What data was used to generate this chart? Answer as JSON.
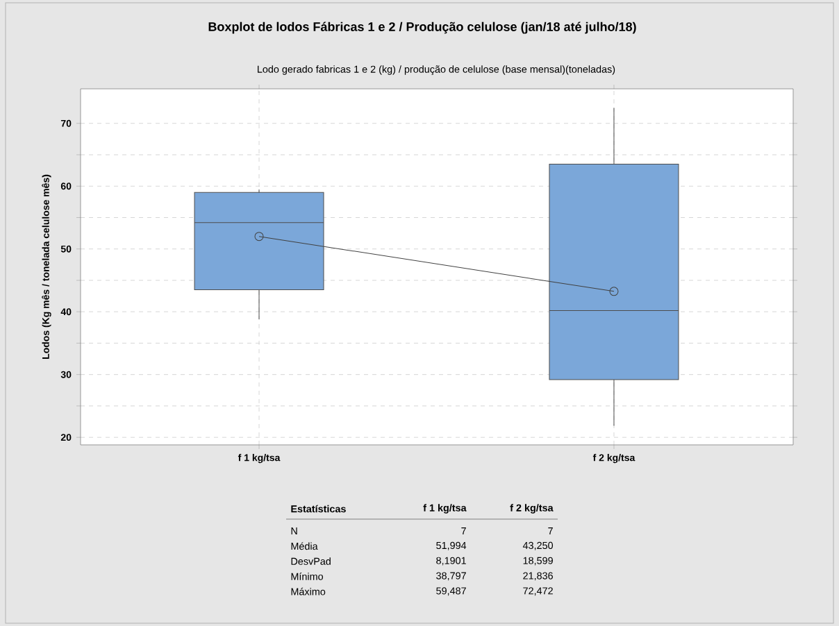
{
  "chart_data": {
    "type": "box",
    "title": "Boxplot de lodos Fábricas 1 e 2 / Produção celulose (jan/18 até julho/18)",
    "subtitle": "Lodo gerado fabricas 1 e 2 (kg) / produção de celulose (base mensal)(toneladas)",
    "ylabel": "Lodos (Kg mês / tonelada celulose mês)",
    "categories": [
      "f 1 kg/tsa",
      "f 2 kg/tsa"
    ],
    "series": [
      {
        "type": "box",
        "color": "#7ba7d9",
        "boxes": [
          {
            "low": 38.797,
            "q1": 43.5,
            "median": 54.2,
            "q3": 59.0,
            "high": 59.487
          },
          {
            "low": 21.836,
            "q1": 29.2,
            "median": 40.2,
            "q3": 63.5,
            "high": 72.472
          }
        ]
      },
      {
        "type": "line",
        "color": "#404040",
        "values": [
          51.994,
          43.25
        ]
      }
    ],
    "marker": "circle",
    "ylim": [
      18.8,
      75.5
    ],
    "yticks": [
      20,
      {
        "value": 25,
        "label": null
      },
      30,
      {
        "value": 35,
        "label": null
      },
      40,
      {
        "value": 45,
        "label": null
      },
      50,
      {
        "value": 55,
        "label": null
      },
      60,
      {
        "value": 65,
        "label": null
      },
      70
    ],
    "grid": true,
    "annotations": [
      "Estatísticas",
      "f 1 kg/tsa",
      "f 2 kg/tsa",
      "N",
      "7",
      "7",
      "Média",
      "51,994",
      "43,250",
      "DesvPad",
      "8,1901",
      "18,599",
      "Mínimo",
      "38,797",
      "21,836",
      "Máximo",
      "59,487",
      "72,472"
    ]
  }
}
